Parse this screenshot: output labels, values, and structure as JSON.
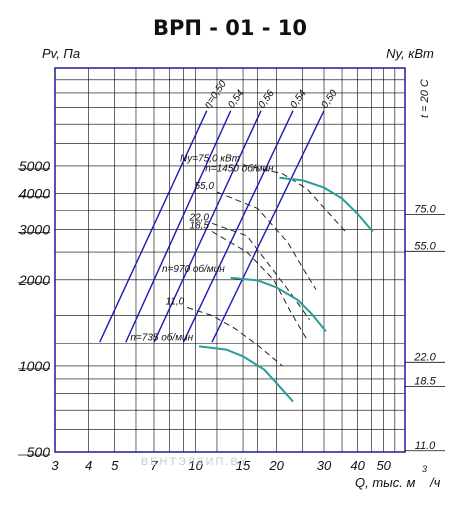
{
  "chart_data": {
    "type": "line",
    "title": "ВРП - 01 - 10",
    "ylabel_left": "Pv, Па",
    "ylabel_right": "Ny, кВт",
    "xlabel": "Q, тыс. м",
    "xlabel_exp": "3",
    "xlabel_tail": "/ч",
    "corner_label": "t = 20 С",
    "x_axis": {
      "scale": "log",
      "range": [
        3,
        60
      ]
    },
    "y_axis": {
      "scale": "log",
      "range": [
        500,
        11000
      ]
    },
    "x_ticks": [
      "3",
      "4",
      "5",
      "7",
      "10",
      "15",
      "20",
      "30",
      "40",
      "50"
    ],
    "x_tick_values": [
      3,
      4,
      5,
      7,
      10,
      15,
      20,
      30,
      40,
      50
    ],
    "y_ticks": [
      "500",
      "1000",
      "2000",
      "3000",
      "4000",
      "5000"
    ],
    "y_tick_values": [
      500,
      1000,
      2000,
      3000,
      4000,
      5000
    ],
    "power_scale_labels": [
      "75.0",
      "55.0",
      "22.0",
      "18.5",
      "11.0"
    ],
    "power_scale_values": [
      3550,
      2640,
      1080,
      890,
      530
    ],
    "efficiency_labels": [
      "η=0,50",
      "0,54",
      "0,56",
      "0,54",
      "0,50"
    ],
    "speed_labels": [
      "n=1450 об/мин",
      "n=970 об/мин",
      "n=735 об/мин"
    ],
    "power_labels": [
      "Ny=75,0 кВт",
      "55,0",
      "22,0",
      "18,5",
      "11,0"
    ],
    "series": [
      {
        "name": "n=1450 об/мин",
        "kind": "pressure",
        "x": [
          20.5,
          25,
          30,
          35,
          40,
          45.5
        ],
        "y": [
          4550,
          4450,
          4200,
          3850,
          3400,
          2950
        ]
      },
      {
        "name": "n=970 об/мин",
        "kind": "pressure",
        "x": [
          13.5,
          17,
          20,
          24,
          27,
          30.5
        ],
        "y": [
          2030,
          1990,
          1880,
          1700,
          1520,
          1320
        ]
      },
      {
        "name": "n=735 об/мин",
        "kind": "pressure",
        "x": [
          10.3,
          13,
          15,
          18,
          20,
          23
        ],
        "y": [
          1170,
          1140,
          1080,
          970,
          870,
          750
        ]
      },
      {
        "name": "0,50",
        "kind": "efficiency",
        "x": [
          4.4,
          11.0
        ],
        "y": [
          1210,
          7800
        ]
      },
      {
        "name": "0,54",
        "kind": "efficiency",
        "x": [
          5.5,
          13.5
        ],
        "y": [
          1210,
          7800
        ]
      },
      {
        "name": "0,56",
        "kind": "efficiency",
        "x": [
          7.0,
          17.5
        ],
        "y": [
          1210,
          7800
        ]
      },
      {
        "name": "0,54",
        "kind": "efficiency",
        "x": [
          9.0,
          23.0
        ],
        "y": [
          1210,
          7800
        ]
      },
      {
        "name": "0,50",
        "kind": "efficiency",
        "x": [
          11.5,
          30.0
        ],
        "y": [
          1210,
          7800
        ]
      },
      {
        "name": "Ny=75,0 кВт",
        "kind": "power",
        "x": [
          15,
          21,
          26,
          31,
          36
        ],
        "y": [
          5050,
          4700,
          4150,
          3450,
          2950
        ]
      },
      {
        "name": "55,0",
        "kind": "power",
        "x": [
          12,
          17,
          22,
          25,
          28
        ],
        "y": [
          4050,
          3550,
          2700,
          2200,
          1850
        ]
      },
      {
        "name": "22,0",
        "kind": "power",
        "x": [
          11.5,
          15.5,
          19.5,
          23,
          26.5
        ],
        "y": [
          3150,
          2850,
          2150,
          1750,
          1450
        ]
      },
      {
        "name": "18,5",
        "kind": "power",
        "x": [
          11.5,
          15.5,
          19.5,
          22.5,
          26
        ],
        "y": [
          2950,
          2500,
          2000,
          1550,
          1230
        ]
      },
      {
        "name": "11,0",
        "kind": "power",
        "x": [
          9.3,
          11.5,
          14,
          17,
          21
        ],
        "y": [
          1600,
          1500,
          1350,
          1180,
          1000
        ]
      }
    ],
    "grid": true,
    "colors": {
      "grid": "#000000",
      "frame": "#1a1aa0",
      "pressure": "#2a9d9a",
      "efficiency": "#1a1ab8",
      "power": "#222222"
    }
  },
  "watermark": "ВЕНТЭЛЗИП.BY"
}
